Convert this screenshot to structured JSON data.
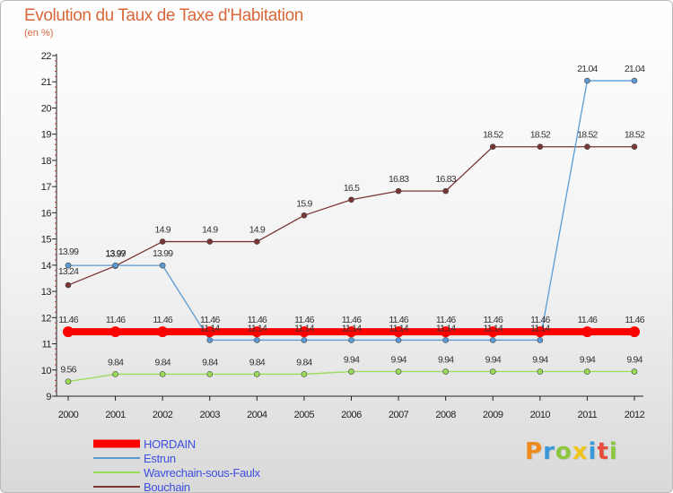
{
  "chart_data": {
    "type": "line",
    "title": "Evolution du Taux de Taxe d'Habitation",
    "subtitle": "(en %)",
    "x": [
      "2000",
      "2001",
      "2002",
      "2003",
      "2004",
      "2005",
      "2006",
      "2007",
      "2008",
      "2009",
      "2010",
      "2011",
      "2012"
    ],
    "ylim": [
      9,
      22
    ],
    "yticks": [
      "9",
      "10",
      "11",
      "12",
      "13",
      "14",
      "15",
      "16",
      "17",
      "18",
      "19",
      "20",
      "21",
      "22"
    ],
    "grid": false,
    "legend_position": "bottom-left",
    "series": [
      {
        "name": "HORDAIN",
        "color": "#ff0000",
        "values": [
          11.46,
          11.46,
          11.46,
          11.46,
          11.46,
          11.46,
          11.46,
          11.46,
          11.46,
          11.46,
          11.46,
          11.46,
          11.46
        ],
        "labels": [
          "11.46",
          "11.46",
          "11.46",
          "11.46",
          "11.46",
          "11.46",
          "11.46",
          "11.46",
          "11.46",
          "11.46",
          "11.46",
          "11.46",
          "11.46"
        ]
      },
      {
        "name": "Estrun",
        "color": "#5b9bd5",
        "values": [
          13.99,
          13.99,
          13.99,
          11.14,
          11.14,
          11.14,
          11.14,
          11.14,
          11.14,
          11.14,
          11.14,
          21.04,
          21.04
        ],
        "labels": [
          "13.99",
          "13.99",
          "13.99",
          "11.14",
          "11.14",
          "11.14",
          "11.14",
          "11.14",
          "11.14",
          "11.14",
          "11.14",
          "21.04",
          "21.04"
        ]
      },
      {
        "name": "Wavrechain-sous-Faulx",
        "color": "#99dd55",
        "values": [
          9.56,
          9.84,
          9.84,
          9.84,
          9.84,
          9.84,
          9.94,
          9.94,
          9.94,
          9.94,
          9.94,
          9.94,
          9.94
        ],
        "labels": [
          "9.56",
          "9.84",
          "9.84",
          "9.84",
          "9.84",
          "9.84",
          "9.94",
          "9.94",
          "9.94",
          "9.94",
          "9.94",
          "9.94",
          "9.94"
        ]
      },
      {
        "name": "Bouchain",
        "color": "#7a3535",
        "values": [
          13.24,
          13.97,
          14.9,
          14.9,
          14.9,
          15.9,
          16.5,
          16.83,
          16.83,
          18.52,
          18.52,
          18.52,
          18.52
        ],
        "labels": [
          "13.24",
          "13.97",
          "14.9",
          "14.9",
          "14.9",
          "15.9",
          "16.5",
          "16.83",
          "16.83",
          "18.52",
          "18.52",
          "18.52",
          "18.52"
        ]
      }
    ]
  },
  "legend": {
    "items": [
      {
        "label": "HORDAIN",
        "color": "#ff0000"
      },
      {
        "label": "Estrun",
        "color": "#5b9bd5"
      },
      {
        "label": "Wavrechain-sous-Faulx",
        "color": "#99dd55"
      },
      {
        "label": "Bouchain",
        "color": "#7a3535"
      }
    ]
  },
  "brand": {
    "name": "Proxiti",
    "letters": [
      {
        "ch": "P",
        "color": "#f08a1c"
      },
      {
        "ch": "r",
        "color": "#3a9ad9"
      },
      {
        "ch": "o",
        "color": "#8cc63e"
      },
      {
        "ch": "x",
        "color": "#f0c419"
      },
      {
        "ch": "i",
        "color": "#3a9ad9"
      },
      {
        "ch": "t",
        "color": "#e84c3d"
      },
      {
        "ch": "i",
        "color": "#8cc63e"
      }
    ]
  }
}
